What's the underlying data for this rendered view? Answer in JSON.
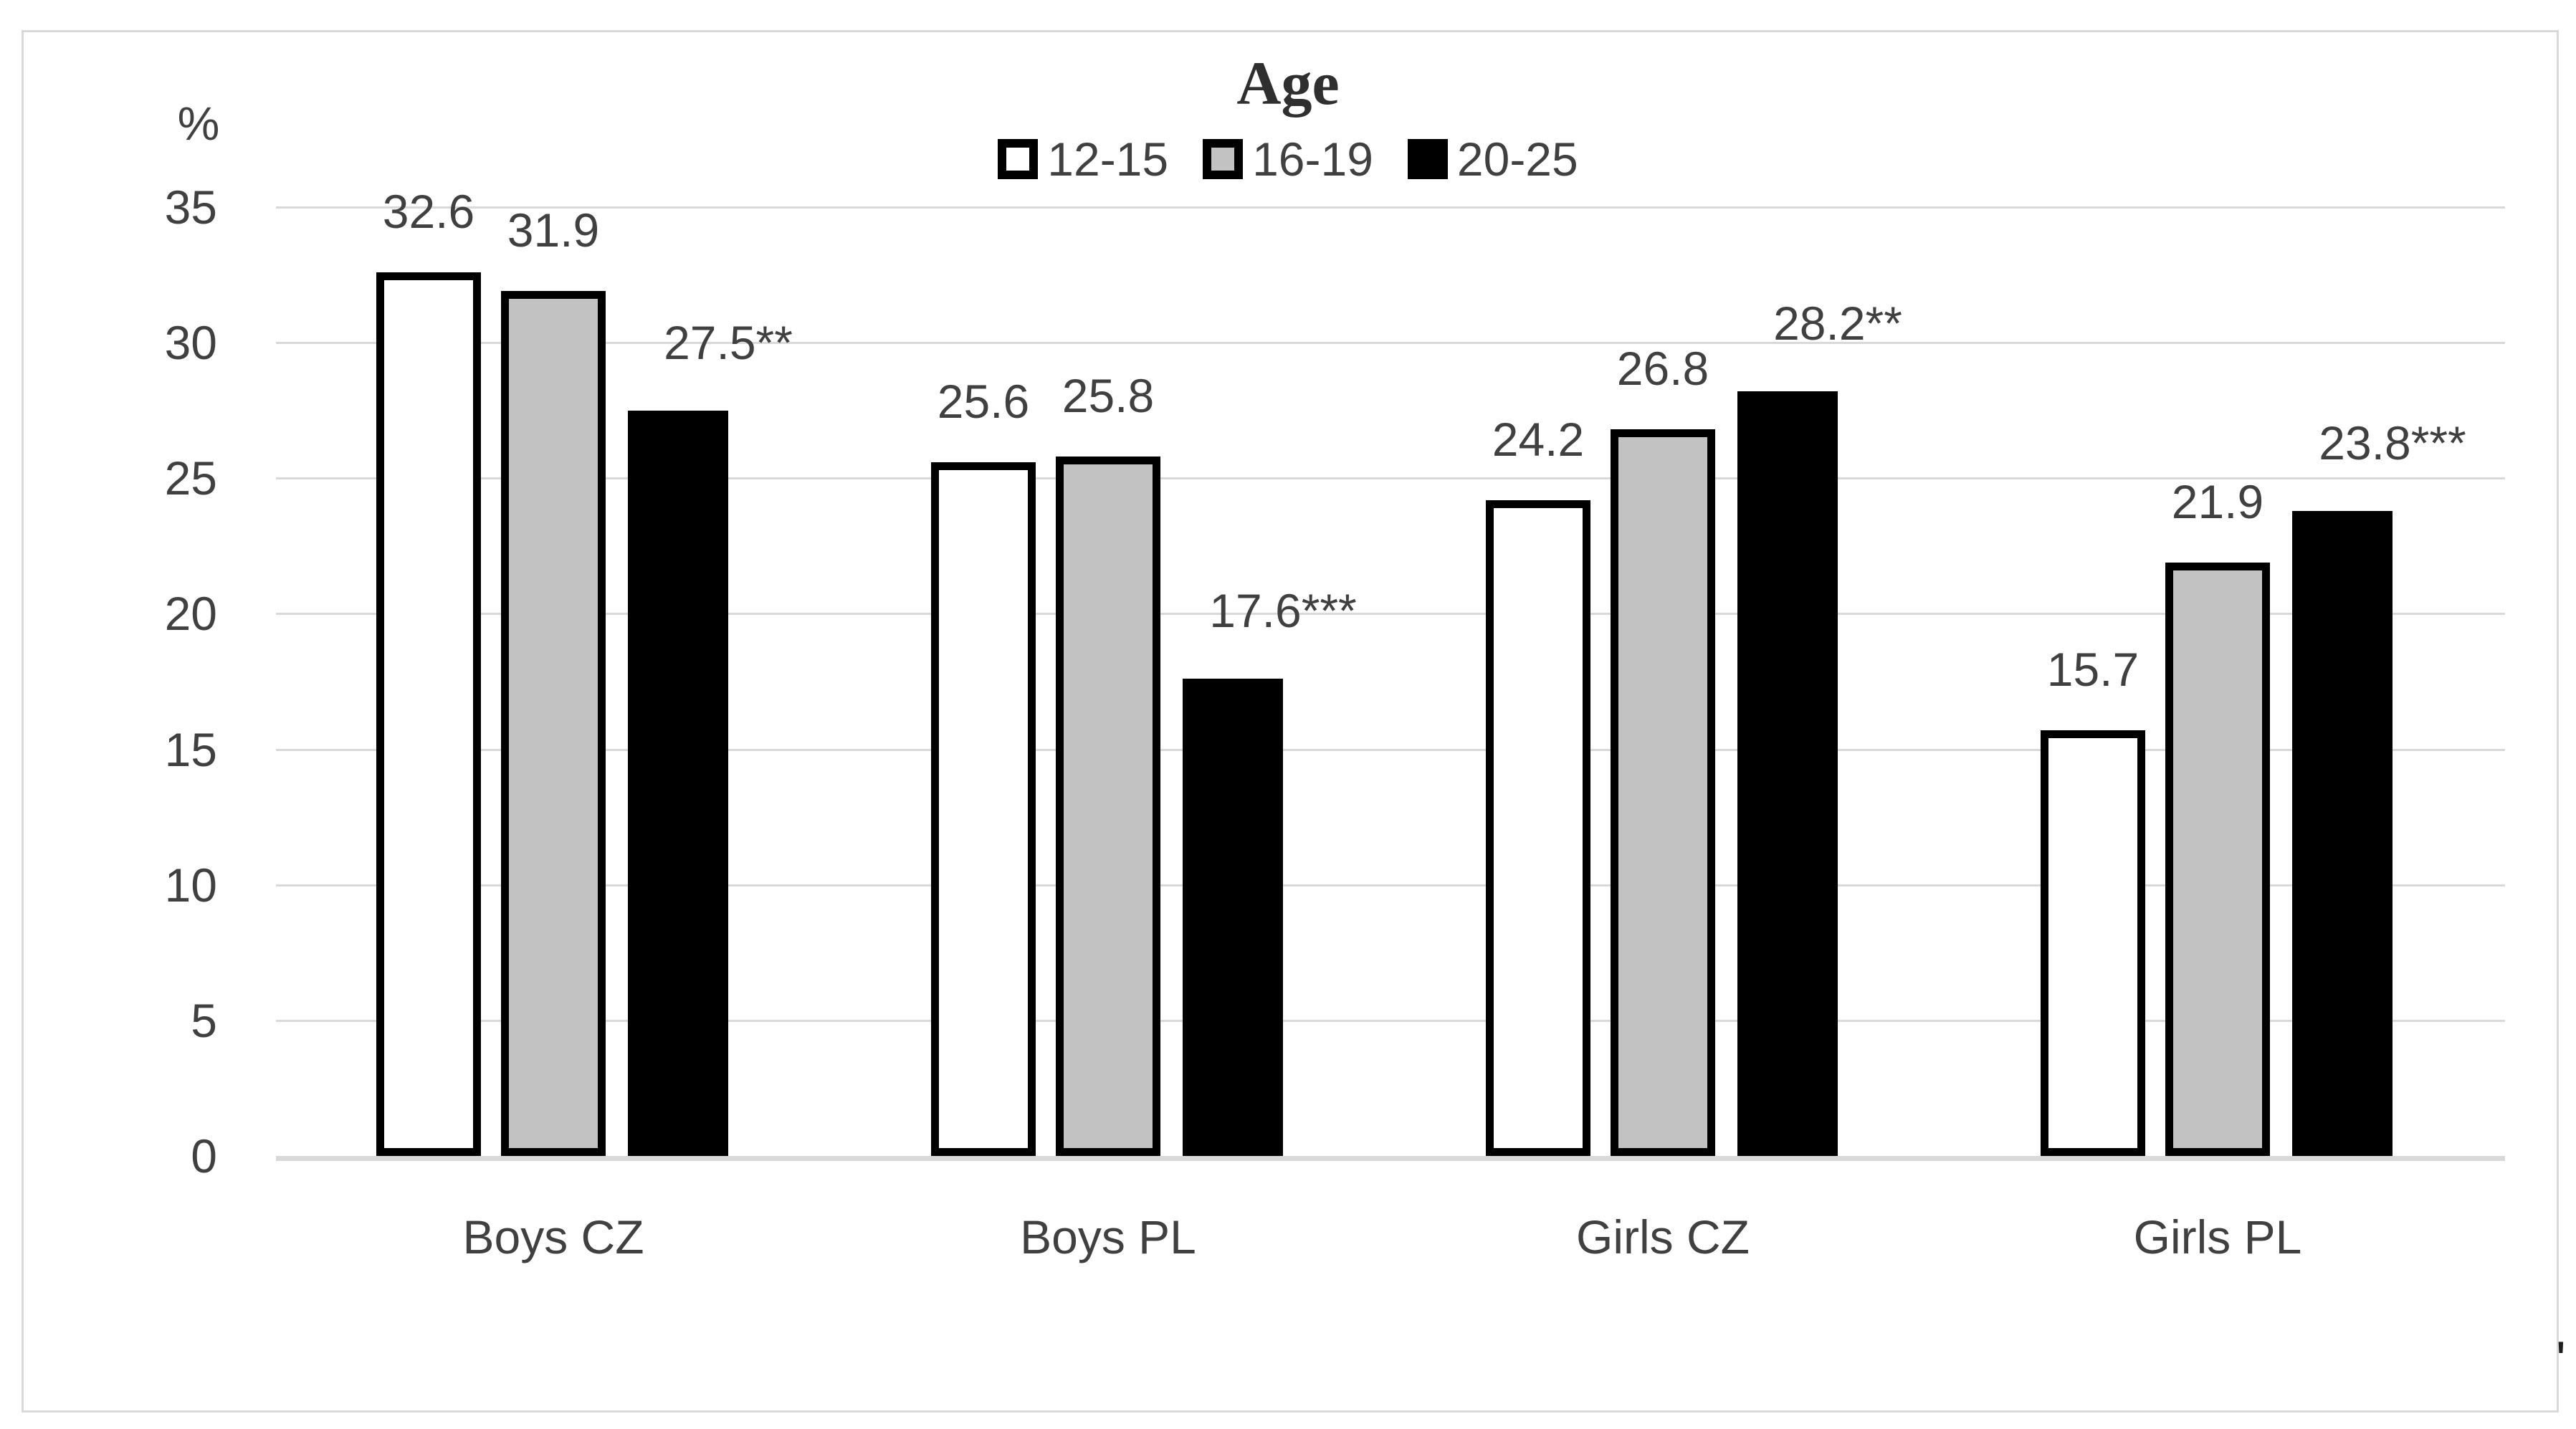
{
  "stray_mark": "'",
  "chart_data": {
    "type": "bar",
    "title": "Age",
    "ylabel": "%",
    "xlabel": "",
    "categories": [
      "Boys CZ",
      "Boys PL",
      "Girls CZ",
      "Girls PL"
    ],
    "series": [
      {
        "name": "12-15",
        "values": [
          32.6,
          25.6,
          24.2,
          15.7
        ],
        "labels": [
          "32.6",
          "25.6",
          "24.2",
          "15.7"
        ]
      },
      {
        "name": "16-19",
        "values": [
          31.9,
          25.8,
          26.8,
          21.9
        ],
        "labels": [
          "31.9",
          "25.8",
          "26.8",
          "21.9"
        ]
      },
      {
        "name": "20-25",
        "values": [
          27.5,
          17.6,
          28.2,
          23.8
        ],
        "labels": [
          "27.5**",
          "17.6***",
          "28.2**",
          "23.8***"
        ]
      }
    ],
    "y_ticks": [
      0,
      5,
      10,
      15,
      20,
      25,
      30,
      35
    ],
    "ylim": [
      0,
      35
    ],
    "grid": true,
    "legend_position": "top",
    "colors": {
      "series_fills": [
        "#ffffff",
        "#c2c2c2",
        "#000000"
      ],
      "bar_border": "#000000",
      "gridline": "#d9d9d9",
      "frame_border": "#d9d9d9",
      "text": "#404040",
      "background": "#ffffff"
    }
  }
}
